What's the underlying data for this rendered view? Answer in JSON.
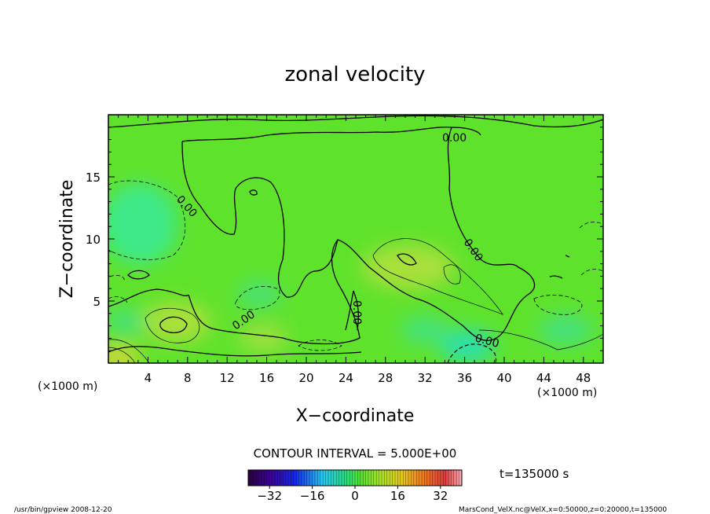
{
  "chart_data": {
    "type": "heatmap",
    "title": "zonal velocity",
    "xlabel": "X−coordinate",
    "ylabel": "Z−coordinate",
    "x_unit": "(×1000 m)",
    "y_unit": "(×1000 m)",
    "xlim": [
      0,
      50
    ],
    "ylim": [
      0,
      20
    ],
    "x_ticks": [
      4,
      8,
      12,
      16,
      20,
      24,
      28,
      32,
      36,
      40,
      44,
      48
    ],
    "y_ticks": [
      5,
      10,
      15
    ],
    "x_tick_labels": [
      "4",
      "8",
      "12",
      "16",
      "20",
      "24",
      "28",
      "32",
      "36",
      "40",
      "44",
      "48"
    ],
    "y_tick_labels": [
      "5",
      "10",
      "15"
    ],
    "contour_interval_text": "CONTOUR INTERVAL = 5.000E+00",
    "contour_labels": [
      {
        "text": "0.00",
        "x": 35.5,
        "z": 18.1
      },
      {
        "text": "0.00",
        "x": 8.0,
        "z": 12.8
      },
      {
        "text": "0.00",
        "x": 37.5,
        "z": 9.2
      },
      {
        "text": "0.00",
        "x": 14.0,
        "z": 3.2
      },
      {
        "text": "0.00",
        "x": 25.2,
        "z": 4.0
      },
      {
        "text": "0.00",
        "x": 38.5,
        "z": 1.8
      }
    ],
    "features": [
      {
        "kind": "positive_max",
        "x": 6.5,
        "z": 3.0,
        "value": 10
      },
      {
        "kind": "positive_max",
        "x": 29.5,
        "z": 8.3,
        "value": 10
      },
      {
        "kind": "negative_min",
        "x": 3.0,
        "z": 11.5,
        "value": -5
      },
      {
        "kind": "negative_min",
        "x": 36.5,
        "z": 0.6,
        "value": -10
      },
      {
        "kind": "positive_max",
        "x": 0.8,
        "z": 0.5,
        "value": 15
      }
    ],
    "colorbar": {
      "vmin": -40,
      "vmax": 40,
      "tick_values": [
        -32,
        -16,
        0,
        16,
        32
      ],
      "tick_labels": [
        "−32",
        "−16",
        "0",
        "16",
        "32"
      ]
    },
    "time_label": "t=135000 s"
  },
  "footer": {
    "left": "/usr/bin/gpview   2008-12-20",
    "right": "MarsCond_VelX.nc@VelX,x=0:50000,z=0:20000,t=135000"
  }
}
